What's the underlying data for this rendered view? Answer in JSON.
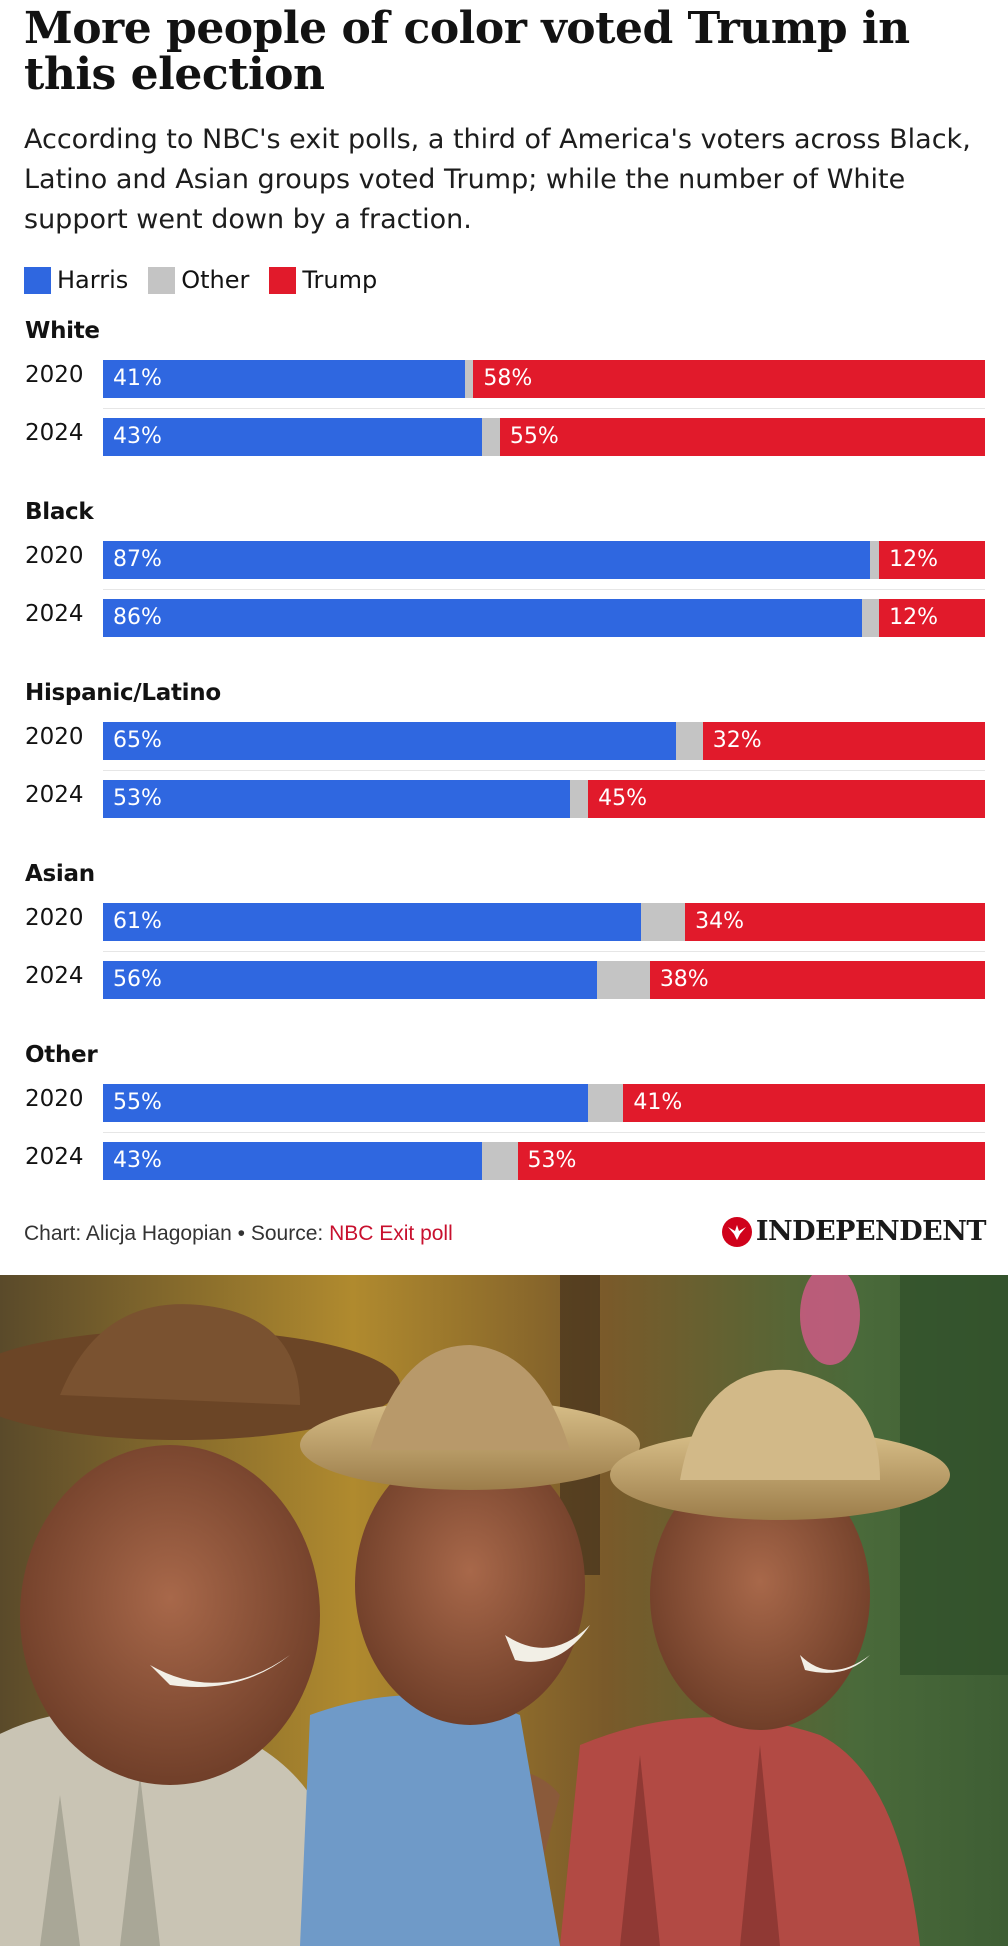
{
  "title": "More people of color voted Trump in this election",
  "subtitle": "According to NBC's exit polls, a third of America's voters across Black, Latino and Asian groups voted Trump; while the number of White support went down by a fraction.",
  "legend": [
    {
      "label": "Harris",
      "color": "#2f67e0"
    },
    {
      "label": "Other",
      "color": "#c4c4c4"
    },
    {
      "label": "Trump",
      "color": "#e11a2b"
    }
  ],
  "chart_data": {
    "type": "bar",
    "orientation": "horizontal-stacked-100",
    "series_names": [
      "Harris",
      "Other",
      "Trump"
    ],
    "groups": [
      {
        "name": "White",
        "rows": [
          {
            "year": "2020",
            "harris": 41,
            "other": 1,
            "trump": 58,
            "harris_label": "41%",
            "trump_label": "58%"
          },
          {
            "year": "2024",
            "harris": 43,
            "other": 2,
            "trump": 55,
            "harris_label": "43%",
            "trump_label": "55%"
          }
        ]
      },
      {
        "name": "Black",
        "rows": [
          {
            "year": "2020",
            "harris": 87,
            "other": 1,
            "trump": 12,
            "harris_label": "87%",
            "trump_label": "12%"
          },
          {
            "year": "2024",
            "harris": 86,
            "other": 2,
            "trump": 12,
            "harris_label": "86%",
            "trump_label": "12%"
          }
        ]
      },
      {
        "name": "Hispanic/Latino",
        "rows": [
          {
            "year": "2020",
            "harris": 65,
            "other": 3,
            "trump": 32,
            "harris_label": "65%",
            "trump_label": "32%"
          },
          {
            "year": "2024",
            "harris": 53,
            "other": 2,
            "trump": 45,
            "harris_label": "53%",
            "trump_label": "45%"
          }
        ]
      },
      {
        "name": "Asian",
        "rows": [
          {
            "year": "2020",
            "harris": 61,
            "other": 5,
            "trump": 34,
            "harris_label": "61%",
            "trump_label": "34%"
          },
          {
            "year": "2024",
            "harris": 56,
            "other": 6,
            "trump": 38,
            "harris_label": "56%",
            "trump_label": "38%"
          }
        ]
      },
      {
        "name": "Other",
        "rows": [
          {
            "year": "2020",
            "harris": 55,
            "other": 4,
            "trump": 41,
            "harris_label": "55%",
            "trump_label": "41%"
          },
          {
            "year": "2024",
            "harris": 43,
            "other": 4,
            "trump": 53,
            "harris_label": "43%",
            "trump_label": "53%"
          }
        ]
      }
    ]
  },
  "footer": {
    "credit": "Chart: Alicja Hagopian",
    "separator": "•",
    "source_prefix": "Source:",
    "source_link": "NBC Exit poll"
  },
  "brand": {
    "name": "INDEPENDENT",
    "color": "#d0021b"
  }
}
